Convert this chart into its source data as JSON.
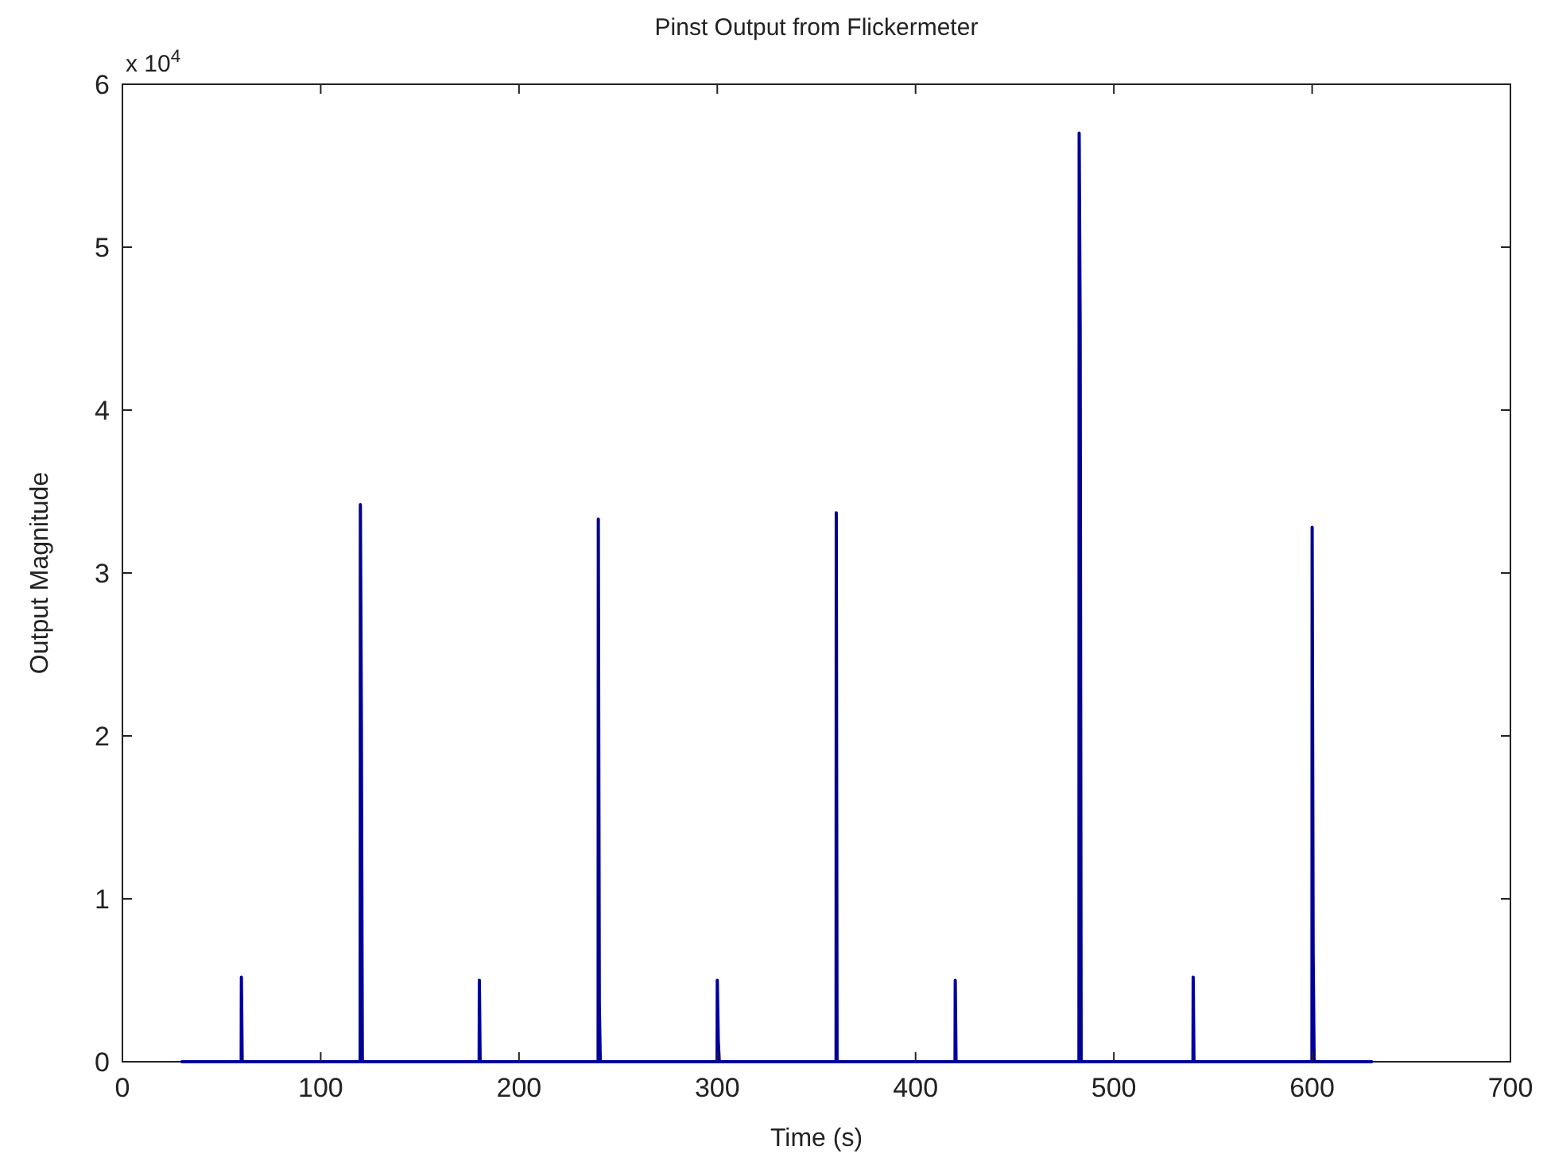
{
  "chart_data": {
    "type": "line",
    "title": "Pinst Output from Flickermeter",
    "xlabel": "Time (s)",
    "ylabel": "Output Magnitude",
    "annotations": [
      "x 10$^{4}$"
    ],
    "xlim": [
      0,
      700
    ],
    "xticks": [
      0,
      100,
      200,
      300,
      400,
      500,
      600,
      700
    ],
    "ylim": [
      0,
      6
    ],
    "yticks": [
      0,
      1,
      2,
      3,
      4,
      5,
      6
    ],
    "grid": false,
    "marker": "none",
    "line_style": "solid",
    "series": [
      {
        "color": "#000099",
        "x": [
          30,
          59.9,
          60,
          60.4,
          119.9,
          120,
          120.5,
          121,
          179.9,
          180,
          180.4,
          239.9,
          240,
          240.5,
          241,
          299.9,
          300,
          300.5,
          301,
          359.9,
          360,
          360.4,
          419.9,
          420,
          420.4,
          482.4,
          482.5,
          483,
          483.5,
          539.9,
          540,
          540.4,
          599.9,
          600,
          600.5,
          601,
          630
        ],
        "values": [
          0,
          0,
          0.52,
          0,
          0,
          3.42,
          2.08,
          0,
          0,
          0.5,
          0,
          0,
          3.33,
          0.35,
          0,
          0,
          0.5,
          0.13,
          0,
          0,
          3.37,
          0,
          0,
          0.5,
          0,
          0,
          5.7,
          4.5,
          0,
          0,
          0.52,
          0,
          0,
          3.28,
          0.67,
          0,
          0
        ]
      }
    ]
  }
}
